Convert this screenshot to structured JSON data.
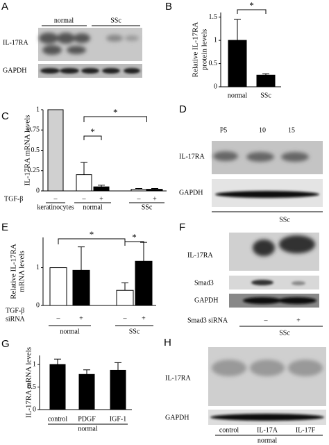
{
  "chart_data": [
    {
      "panel": "B",
      "type": "bar",
      "ylabel": [
        "Relative IL-17RA",
        "protein levels"
      ],
      "categories": [
        "normal",
        "SSc"
      ],
      "values": [
        1.0,
        0.25
      ],
      "errors": [
        0.45,
        0.03
      ],
      "colors": [
        "#000000",
        "#000000"
      ],
      "ylim": [
        0,
        1.6
      ],
      "yticks": [
        0,
        0.5,
        1,
        1.5
      ],
      "annotations": [
        "*"
      ]
    },
    {
      "panel": "C",
      "type": "bar",
      "ylabel": [
        "IL-17RA mRNA levels"
      ],
      "row_labels": [
        "TGF-β"
      ],
      "categories": [
        "–",
        "–",
        "+",
        "–",
        "+"
      ],
      "groups": [
        "keratinocytes",
        "normal",
        "SSc"
      ],
      "values": [
        1.0,
        0.2,
        0.05,
        0.02,
        0.02
      ],
      "errors": [
        0,
        0.15,
        0.02,
        0.01,
        0.01
      ],
      "colors": [
        "#d0d0d0",
        "#ffffff",
        "#000000",
        "#ffffff",
        "#000000"
      ],
      "ylim": [
        0,
        1
      ],
      "yticks": [
        0,
        0.25,
        0.5,
        0.75,
        1
      ],
      "annotations": [
        "*",
        "*"
      ]
    },
    {
      "panel": "E",
      "type": "bar",
      "ylabel": [
        "Relative IL-17RA",
        "mRNA levels"
      ],
      "row_labels": [
        "TGF-β",
        "siRNA"
      ],
      "categories": [
        "–",
        "+",
        "–",
        "+"
      ],
      "groups": [
        "normal",
        "SSc"
      ],
      "values": [
        1.0,
        0.93,
        0.4,
        1.17
      ],
      "errors": [
        0,
        0.62,
        0.2,
        0.5
      ],
      "colors": [
        "#ffffff",
        "#000000",
        "#ffffff",
        "#000000"
      ],
      "ylim": [
        0,
        1.8
      ],
      "yticks": [
        0,
        1
      ],
      "annotations": [
        "*",
        "*"
      ]
    },
    {
      "panel": "G",
      "type": "bar",
      "ylabel": [
        "IL-17RA mRNA levels"
      ],
      "categories": [
        "control",
        "PDGF",
        "IGF-1"
      ],
      "groups": [
        "normal"
      ],
      "values": [
        1.0,
        0.78,
        0.87
      ],
      "errors": [
        0.12,
        0.1,
        0.17
      ],
      "colors": [
        "#000000",
        "#000000",
        "#000000"
      ],
      "ylim": [
        0,
        1.2
      ],
      "yticks": [
        0,
        0.5,
        1
      ],
      "annotations": []
    }
  ],
  "blots": {
    "A": {
      "panel": "A",
      "groups": [
        "normal",
        "SSc"
      ],
      "rows": [
        "IL-17RA",
        "GAPDH"
      ]
    },
    "D": {
      "panel": "D",
      "lanes": [
        "P5",
        "10",
        "15"
      ],
      "rows": [
        "IL-17RA",
        "GAPDH"
      ],
      "group": "SSc"
    },
    "F": {
      "panel": "F",
      "rows": [
        "IL-17RA",
        "Smad3",
        "GAPDH"
      ],
      "treatment": "Smad3 siRNA",
      "lanes": [
        "–",
        "+"
      ],
      "group": "SSc"
    },
    "H": {
      "panel": "H",
      "rows": [
        "IL-17RA",
        "GAPDH"
      ],
      "lanes": [
        "control",
        "IL-17A",
        "IL-17F"
      ],
      "group": "normal"
    }
  }
}
